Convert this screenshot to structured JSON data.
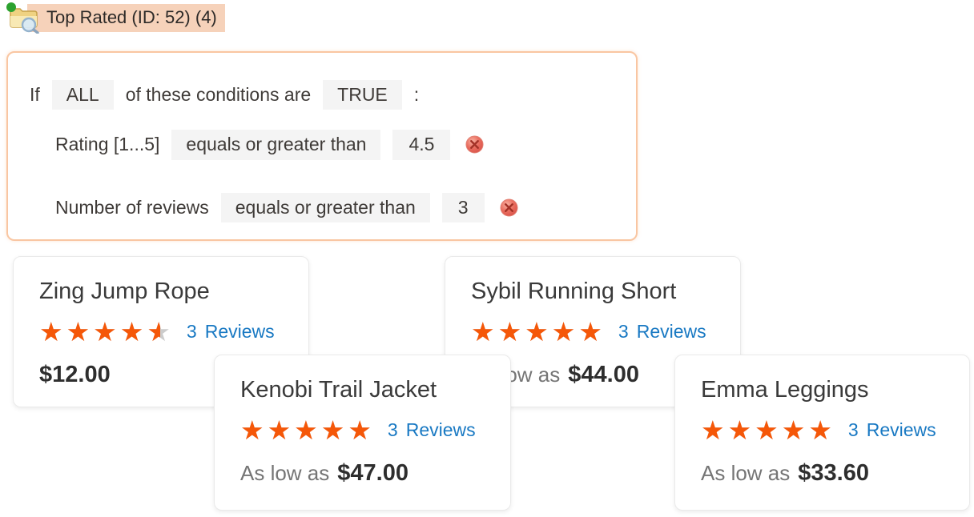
{
  "tree_item": {
    "label": "Top Rated (ID: 52) (4)",
    "icon": "folder-search-icon"
  },
  "conditions_panel": {
    "prefix": "If",
    "aggregator": "ALL",
    "middle": "of these conditions are",
    "value": "TRUE",
    "suffix": ":",
    "rows": [
      {
        "attribute": "Rating [1...5]",
        "operator": "equals or greater than",
        "value": "4.5"
      },
      {
        "attribute": "Number of reviews",
        "operator": "equals or greater than",
        "value": "3"
      }
    ]
  },
  "glyphs": {
    "stars": "★★★★★"
  },
  "products": [
    {
      "name": "Zing Jump Rope",
      "rating_percent": 90,
      "reviews_count": "3",
      "reviews_label": "Reviews",
      "price_prefix": "",
      "price": "$12.00"
    },
    {
      "name": "Sybil Running Short",
      "rating_percent": 100,
      "reviews_count": "3",
      "reviews_label": "Reviews",
      "price_prefix": "As low as",
      "price": "$44.00"
    },
    {
      "name": "Kenobi Trail Jacket",
      "rating_percent": 100,
      "reviews_count": "3",
      "reviews_label": "Reviews",
      "price_prefix": "As low as",
      "price": "$47.00"
    },
    {
      "name": "Emma Leggings",
      "rating_percent": 100,
      "reviews_count": "3",
      "reviews_label": "Reviews",
      "price_prefix": "As low as",
      "price": "$33.60"
    }
  ],
  "colors": {
    "star": "#f55708",
    "link": "#1979c3",
    "tree_highlight": "#f6d2ba",
    "panel_border": "#f9c6a2",
    "chip_bg": "#f4f4f4"
  }
}
